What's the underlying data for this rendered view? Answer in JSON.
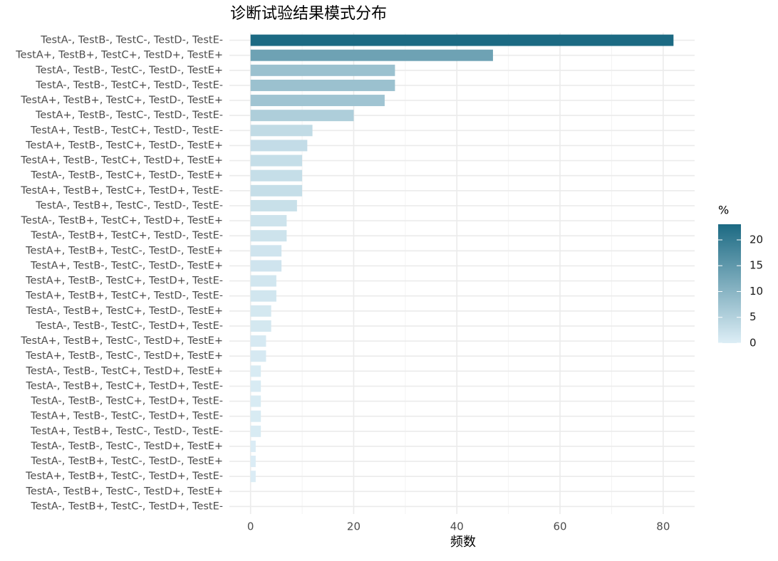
{
  "chart_data": {
    "type": "bar",
    "orientation": "horizontal",
    "title": "诊断试验结果模式分布",
    "x_label": "频数",
    "categories": [
      "TestA-, TestB-, TestC-, TestD-, TestE-",
      "TestA+, TestB+, TestC+, TestD+, TestE+",
      "TestA-, TestB-, TestC-, TestD-, TestE+",
      "TestA-, TestB-, TestC+, TestD-, TestE-",
      "TestA+, TestB+, TestC+, TestD-, TestE+",
      "TestA+, TestB-, TestC-, TestD-, TestE-",
      "TestA+, TestB-, TestC+, TestD-, TestE-",
      "TestA+, TestB-, TestC+, TestD-, TestE+",
      "TestA+, TestB-, TestC+, TestD+, TestE+",
      "TestA-, TestB-, TestC+, TestD-, TestE+",
      "TestA+, TestB+, TestC+, TestD+, TestE-",
      "TestA-, TestB+, TestC-, TestD-, TestE-",
      "TestA-, TestB+, TestC+, TestD+, TestE+",
      "TestA-, TestB+, TestC+, TestD-, TestE-",
      "TestA+, TestB+, TestC-, TestD-, TestE+",
      "TestA+, TestB-, TestC-, TestD-, TestE+",
      "TestA+, TestB-, TestC+, TestD+, TestE-",
      "TestA+, TestB+, TestC+, TestD-, TestE-",
      "TestA-, TestB+, TestC+, TestD-, TestE+",
      "TestA-, TestB-, TestC-, TestD+, TestE-",
      "TestA+, TestB+, TestC-, TestD+, TestE+",
      "TestA+, TestB-, TestC-, TestD+, TestE+",
      "TestA-, TestB-, TestC+, TestD+, TestE+",
      "TestA-, TestB+, TestC+, TestD+, TestE-",
      "TestA-, TestB-, TestC+, TestD+, TestE-",
      "TestA+, TestB-, TestC-, TestD+, TestE-",
      "TestA+, TestB+, TestC-, TestD-, TestE-",
      "TestA-, TestB-, TestC-, TestD+, TestE+",
      "TestA-, TestB+, TestC-, TestD-, TestE+",
      "TestA+, TestB+, TestC-, TestD+, TestE-",
      "TestA-, TestB+, TestC-, TestD+, TestE+",
      "TestA-, TestB+, TestC-, TestD+, TestE-"
    ],
    "values": [
      82,
      47,
      28,
      28,
      26,
      20,
      12,
      11,
      10,
      10,
      10,
      9,
      7,
      7,
      6,
      6,
      5,
      5,
      4,
      4,
      3,
      3,
      2,
      2,
      2,
      2,
      2,
      1,
      1,
      1,
      0,
      0
    ],
    "xlim": [
      -4.1,
      86.1
    ],
    "xticks": [
      0,
      20,
      40,
      60,
      80
    ],
    "x_minor_ticks": [
      10,
      30,
      50,
      70
    ],
    "grid": true,
    "colorbar": {
      "title": "%",
      "colors": [
        "#ddeef6",
        "#1c6a83"
      ],
      "lim": [
        0,
        23.03
      ],
      "ticks": [
        0,
        5,
        10,
        15,
        20
      ]
    }
  }
}
